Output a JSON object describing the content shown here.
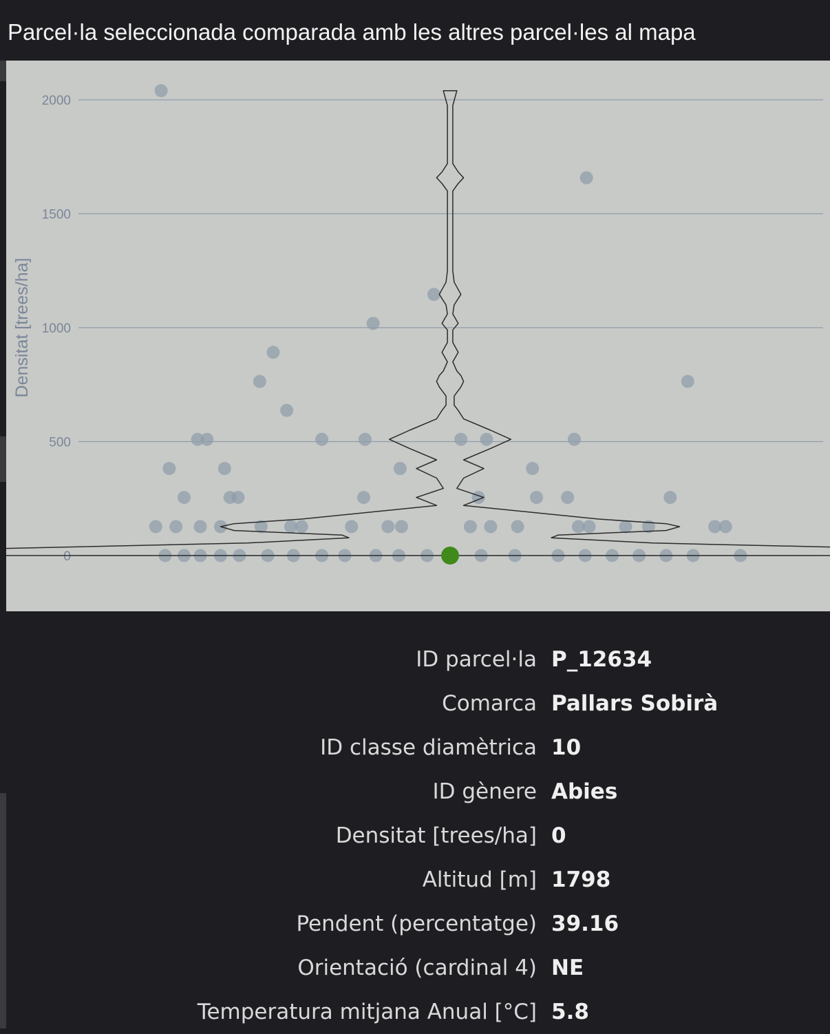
{
  "panel": {
    "title": "Parcel·la seleccionada comparada amb les altres parcel·les al mapa"
  },
  "chart_data": {
    "type": "scatter",
    "subtype": "violin-with-jittered-points",
    "ylabel": "Densitat [trees/ha]",
    "xlabel": "",
    "ylim": [
      -190,
      2230
    ],
    "yticks": [
      0,
      500,
      1000,
      1500,
      2000
    ],
    "grid": true,
    "colors": {
      "background": "#c8cac7",
      "points": "#8e9cab",
      "selected": "#3f8a1a",
      "violin": "#2b2b2b",
      "grid": "#8e9cab"
    },
    "series": [
      {
        "points": [
          {
            "x": -0.214,
            "y": 2040
          },
          {
            "x": 0.101,
            "y": 1658
          },
          {
            "x": -0.012,
            "y": 1146
          },
          {
            "x": -0.057,
            "y": 1019
          },
          {
            "x": -0.131,
            "y": 892
          },
          {
            "x": -0.141,
            "y": 764
          },
          {
            "x": 0.176,
            "y": 764
          },
          {
            "x": -0.121,
            "y": 637
          },
          {
            "x": -0.187,
            "y": 510
          },
          {
            "x": -0.18,
            "y": 510
          },
          {
            "x": -0.095,
            "y": 510
          },
          {
            "x": -0.063,
            "y": 510
          },
          {
            "x": 0.008,
            "y": 510
          },
          {
            "x": 0.027,
            "y": 510
          },
          {
            "x": 0.092,
            "y": 510
          },
          {
            "x": -0.208,
            "y": 382
          },
          {
            "x": -0.167,
            "y": 382
          },
          {
            "x": -0.037,
            "y": 382
          },
          {
            "x": 0.061,
            "y": 382
          },
          {
            "x": -0.197,
            "y": 255
          },
          {
            "x": -0.163,
            "y": 255
          },
          {
            "x": -0.157,
            "y": 255
          },
          {
            "x": -0.064,
            "y": 255
          },
          {
            "x": 0.021,
            "y": 255
          },
          {
            "x": 0.064,
            "y": 255
          },
          {
            "x": 0.087,
            "y": 255
          },
          {
            "x": 0.163,
            "y": 255
          },
          {
            "x": -0.218,
            "y": 127
          },
          {
            "x": -0.203,
            "y": 127
          },
          {
            "x": -0.185,
            "y": 127
          },
          {
            "x": -0.17,
            "y": 127
          },
          {
            "x": -0.14,
            "y": 127
          },
          {
            "x": -0.118,
            "y": 127
          },
          {
            "x": -0.11,
            "y": 127
          },
          {
            "x": -0.073,
            "y": 127
          },
          {
            "x": -0.046,
            "y": 127
          },
          {
            "x": -0.036,
            "y": 127
          },
          {
            "x": 0.015,
            "y": 127
          },
          {
            "x": 0.03,
            "y": 127
          },
          {
            "x": 0.05,
            "y": 127
          },
          {
            "x": 0.095,
            "y": 127
          },
          {
            "x": 0.103,
            "y": 127
          },
          {
            "x": 0.13,
            "y": 127
          },
          {
            "x": 0.147,
            "y": 127
          },
          {
            "x": 0.196,
            "y": 127
          },
          {
            "x": 0.204,
            "y": 127
          },
          {
            "x": -0.211,
            "y": 0
          },
          {
            "x": -0.197,
            "y": 0
          },
          {
            "x": -0.185,
            "y": 0
          },
          {
            "x": -0.17,
            "y": 0
          },
          {
            "x": -0.156,
            "y": 0
          },
          {
            "x": -0.135,
            "y": 0
          },
          {
            "x": -0.116,
            "y": 0
          },
          {
            "x": -0.095,
            "y": 0
          },
          {
            "x": -0.078,
            "y": 0
          },
          {
            "x": -0.055,
            "y": 0
          },
          {
            "x": -0.038,
            "y": 0
          },
          {
            "x": -0.017,
            "y": 0
          },
          {
            "x": 0.023,
            "y": 0
          },
          {
            "x": 0.048,
            "y": 0
          },
          {
            "x": 0.08,
            "y": 0
          },
          {
            "x": 0.1,
            "y": 0
          },
          {
            "x": 0.12,
            "y": 0
          },
          {
            "x": 0.14,
            "y": 0
          },
          {
            "x": 0.16,
            "y": 0
          },
          {
            "x": 0.18,
            "y": 0
          },
          {
            "x": 0.215,
            "y": 0
          }
        ]
      },
      {
        "points": [
          {
            "x": 0.0,
            "y": 0
          }
        ]
      }
    ],
    "violin": {
      "y": [
        2040,
        1975,
        1900,
        1800,
        1720,
        1683,
        1658,
        1633,
        1600,
        1500,
        1400,
        1250,
        1200,
        1146,
        1100,
        1060,
        1019,
        990,
        960,
        935,
        892,
        850,
        810,
        790,
        764,
        740,
        700,
        660,
        637,
        600,
        550,
        510,
        470,
        420,
        382,
        340,
        295,
        255,
        220,
        190,
        160,
        140,
        127,
        110,
        90,
        78,
        55,
        35,
        15,
        0
      ],
      "half_width": [
        0.005,
        0.002,
        0.002,
        0.002,
        0.002,
        0.006,
        0.01,
        0.006,
        0.002,
        0.002,
        0.002,
        0.002,
        0.003,
        0.008,
        0.003,
        0.002,
        0.006,
        0.002,
        0.002,
        0.002,
        0.006,
        0.002,
        0.005,
        0.008,
        0.01,
        0.008,
        0.003,
        0.003,
        0.006,
        0.01,
        0.03,
        0.045,
        0.03,
        0.01,
        0.025,
        0.01,
        0.005,
        0.025,
        0.01,
        0.06,
        0.11,
        0.16,
        0.17,
        0.16,
        0.08,
        0.075,
        0.15,
        0.3,
        0.45,
        0.5
      ]
    }
  },
  "selected_plot": {
    "rows": [
      {
        "label": "ID parcel·la",
        "value": "P_12634"
      },
      {
        "label": "Comarca",
        "value": "Pallars Sobirà"
      },
      {
        "label": "ID classe diamètrica",
        "value": "10"
      },
      {
        "label": "ID gènere",
        "value": "Abies"
      },
      {
        "label": "Densitat [trees/ha]",
        "value": "0"
      },
      {
        "label": "Altitud [m]",
        "value": "1798"
      },
      {
        "label": "Pendent (percentatge)",
        "value": "39.16"
      },
      {
        "label": "Orientació (cardinal 4)",
        "value": "NE"
      },
      {
        "label": "Temperatura mitjana Anual [°C]",
        "value": "5.8"
      }
    ]
  }
}
